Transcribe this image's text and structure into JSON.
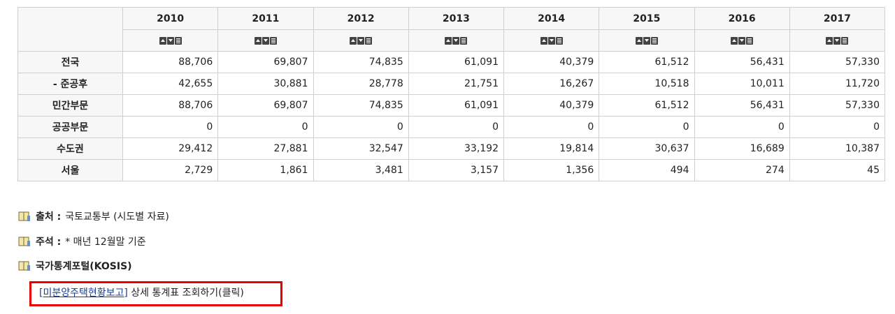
{
  "table": {
    "columns": [
      "2010",
      "2011",
      "2012",
      "2013",
      "2014",
      "2015",
      "2016",
      "2017"
    ],
    "rows": [
      {
        "label": "전국",
        "values": [
          "88,706",
          "69,807",
          "74,835",
          "61,091",
          "40,379",
          "61,512",
          "56,431",
          "57,330"
        ]
      },
      {
        "label": "- 준공후",
        "values": [
          "42,655",
          "30,881",
          "28,778",
          "21,751",
          "16,267",
          "10,518",
          "10,011",
          "11,720"
        ]
      },
      {
        "label": "민간부문",
        "values": [
          "88,706",
          "69,807",
          "74,835",
          "61,091",
          "40,379",
          "61,512",
          "56,431",
          "57,330"
        ]
      },
      {
        "label": "공공부문",
        "values": [
          "0",
          "0",
          "0",
          "0",
          "0",
          "0",
          "0",
          "0"
        ]
      },
      {
        "label": "수도권",
        "values": [
          "29,412",
          "27,881",
          "32,547",
          "33,192",
          "19,814",
          "30,637",
          "16,689",
          "10,387"
        ]
      },
      {
        "label": "서울",
        "values": [
          "2,729",
          "1,861",
          "3,481",
          "3,157",
          "1,356",
          "494",
          "274",
          "45"
        ]
      }
    ]
  },
  "notes": {
    "source": {
      "label": "출처 :",
      "text": "국토교통부 (시도별 자료)"
    },
    "remark": {
      "label": "주석 :",
      "text": "* 매년 12월말 기준"
    },
    "kosis": "국가통계포털(KOSIS)"
  },
  "link": {
    "anchor": "[미분양주택현황보고]",
    "text": "상세 통계표 조회하기(클릭)"
  }
}
